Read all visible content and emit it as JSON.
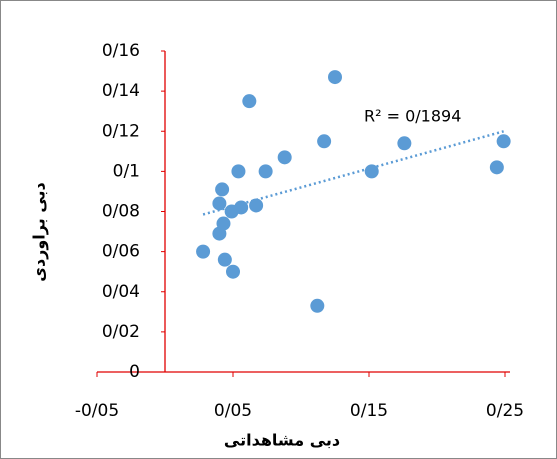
{
  "chart_data": {
    "type": "scatter",
    "x_label": "دبی مشاهداتی",
    "y_label": "دبی براوردی",
    "annotation": "R² = 0/1894",
    "trendline": true,
    "color": "#5b9bd5",
    "trendline_color": "#5b9bd5",
    "axis_color": "#e00000",
    "x": [
      0.028,
      0.04,
      0.042,
      0.04,
      0.043,
      0.044,
      0.049,
      0.05,
      0.054,
      0.056,
      0.062,
      0.067,
      0.074,
      0.088,
      0.112,
      0.117,
      0.125,
      0.152,
      0.176,
      0.244,
      0.249
    ],
    "values": [
      0.06,
      0.084,
      0.091,
      0.069,
      0.074,
      0.056,
      0.08,
      0.05,
      0.1,
      0.082,
      0.135,
      0.083,
      0.1,
      0.107,
      0.033,
      0.115,
      0.147,
      0.1,
      0.114,
      0.102,
      0.115
    ],
    "xlim": [
      -0.05,
      0.25
    ],
    "xticks": [
      {
        "value": -0.05,
        "label": "-0/05"
      },
      {
        "value": 0.05,
        "label": "0/05"
      },
      {
        "value": 0.15,
        "label": "0/15"
      },
      {
        "value": 0.25,
        "label": "0/25"
      }
    ],
    "ylim": [
      0,
      0.16
    ],
    "yticks": [
      0,
      {
        "value": 0.02,
        "label": "0/02"
      },
      {
        "value": 0.04,
        "label": "0/04"
      },
      {
        "value": 0.06,
        "label": "0/06"
      },
      {
        "value": 0.08,
        "label": "0/08"
      },
      {
        "value": 0.1,
        "label": "0/1"
      },
      {
        "value": 0.12,
        "label": "0/12"
      },
      {
        "value": 0.14,
        "label": "0/14"
      },
      {
        "value": 0.16,
        "label": "0/16"
      }
    ],
    "grid": false
  }
}
